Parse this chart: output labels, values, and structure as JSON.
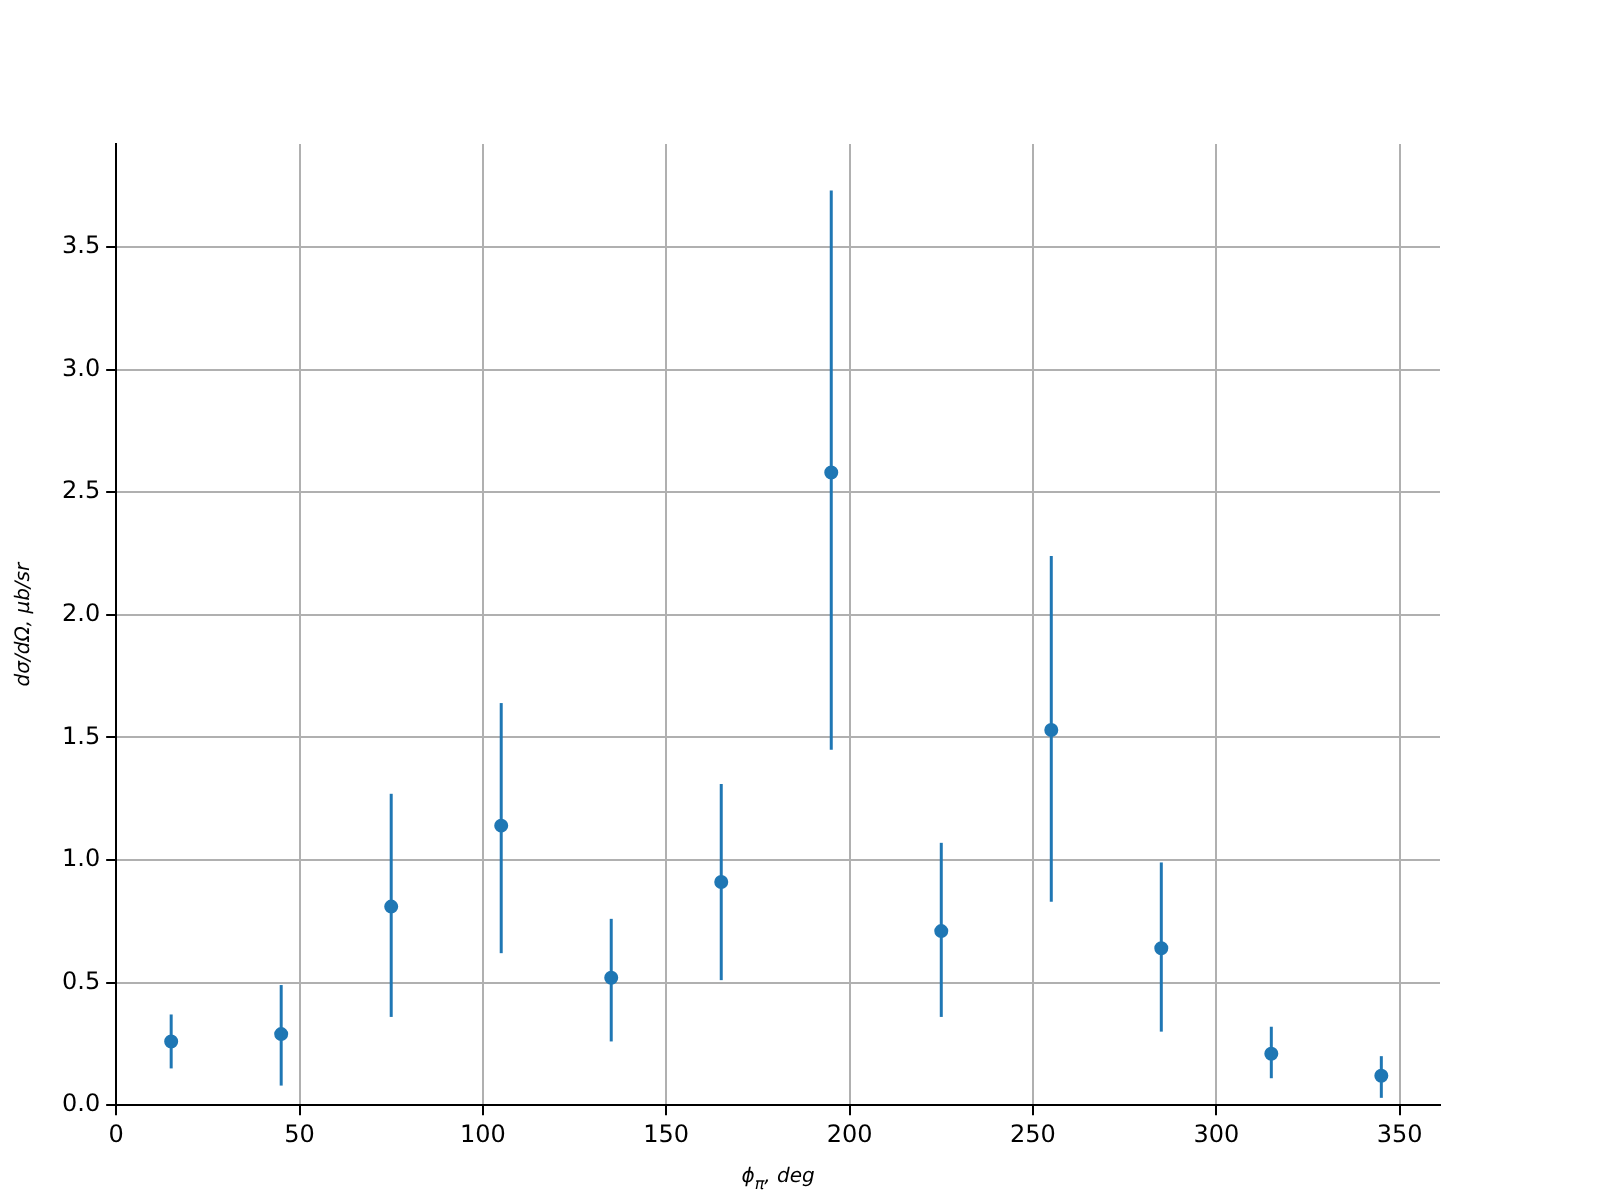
{
  "chart_data": {
    "type": "scatter",
    "xlabel": "ϕ$_{π}$, deg",
    "ylabel": "dσ/dΩ, μb/sr",
    "x": [
      15,
      45,
      75,
      105,
      135,
      165,
      195,
      225,
      255,
      285,
      315,
      345
    ],
    "series": [
      {
        "color": "#1f77b4",
        "values": [
          0.26,
          0.29,
          0.81,
          1.14,
          0.52,
          0.91,
          2.58,
          0.71,
          1.53,
          0.64,
          0.21,
          0.12
        ],
        "errors": [
          [
            0.15,
            0.37
          ],
          [
            0.08,
            0.49
          ],
          [
            0.36,
            1.27
          ],
          [
            0.62,
            1.64
          ],
          [
            0.26,
            0.76
          ],
          [
            0.51,
            1.31
          ],
          [
            1.45,
            3.73
          ],
          [
            0.36,
            1.07
          ],
          [
            0.83,
            2.24
          ],
          [
            0.3,
            0.99
          ],
          [
            0.11,
            0.32
          ],
          [
            0.03,
            0.2
          ]
        ]
      }
    ],
    "xlim": [
      0,
      361
    ],
    "xticks": [
      0,
      50,
      100,
      150,
      200,
      250,
      300,
      350
    ],
    "ylim": [
      0,
      3.92
    ],
    "yticks": [
      {
        "value": 0,
        "label": "0.0"
      },
      0.5,
      {
        "value": 1,
        "label": "1.0"
      },
      1.5,
      {
        "value": 2,
        "label": "2.0"
      },
      2.5,
      {
        "value": 3,
        "label": "3.0"
      },
      3.5
    ],
    "grid": true,
    "marker": "circle",
    "legend": false
  }
}
